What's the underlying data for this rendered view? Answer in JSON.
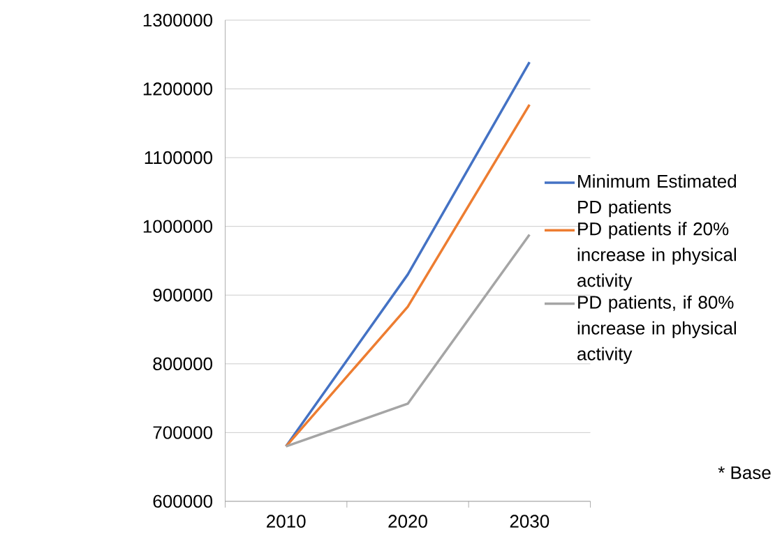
{
  "chart_data": {
    "type": "line",
    "categories": [
      "2010",
      "2020",
      "2030"
    ],
    "series": [
      {
        "name": "Minimum Estimated PD patients",
        "color": "#4472c4",
        "values": [
          680000,
          930000,
          1239000
        ]
      },
      {
        "name": "PD patients if 20% increase in physical activity",
        "color": "#ed7d31",
        "values": [
          680000,
          883000,
          1177000
        ]
      },
      {
        "name": "PD patients, if 80% increase in physical activity",
        "color": "#a5a5a5",
        "values": [
          680000,
          742000,
          988000
        ]
      }
    ],
    "ylim": [
      600000,
      1300000
    ],
    "yticks": [
      600000,
      700000,
      800000,
      900000,
      1000000,
      1100000,
      1200000,
      1300000
    ],
    "grid": "y",
    "legend": "right",
    "annotations": [
      "* Base"
    ]
  }
}
